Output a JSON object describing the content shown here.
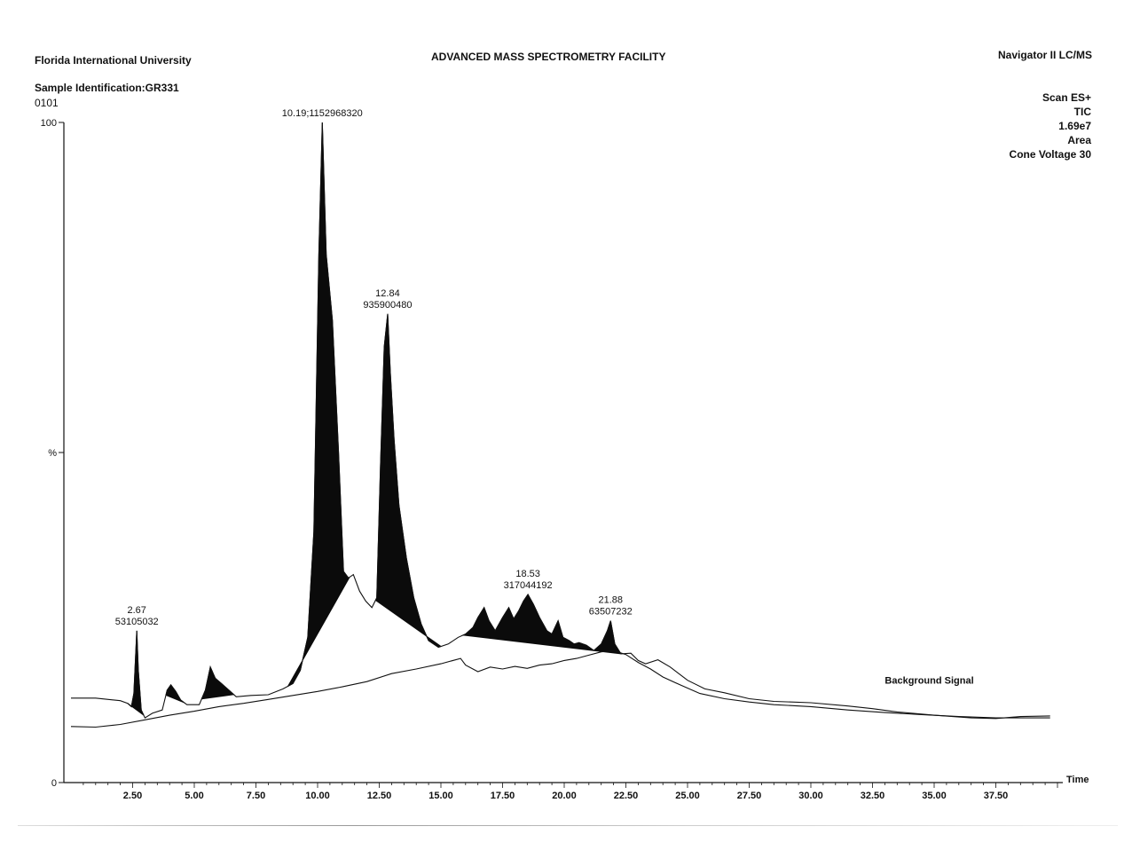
{
  "header": {
    "institution": "Florida International University",
    "facility": "ADVANCED MASS SPECTROMETRY FACILITY",
    "instrument": "Navigator II LC/MS",
    "sample_identification": "Sample Identification:GR331",
    "run_id": "0101"
  },
  "scan_info": [
    "Scan ES+",
    "TIC",
    "1.69e7",
    "Area",
    "Cone Voltage 30"
  ],
  "chart_data": {
    "type": "line",
    "xlabel": "Time",
    "ylabel": "%",
    "xlim": [
      0,
      40
    ],
    "ylim": [
      0,
      100
    ],
    "y_ticks": [
      {
        "value": 0,
        "label": "0"
      },
      {
        "value": 50,
        "label": "%"
      },
      {
        "value": 100,
        "label": "100"
      }
    ],
    "x_ticks": [
      "2.50",
      "5.00",
      "7.50",
      "10.00",
      "12.50",
      "15.00",
      "17.50",
      "20.00",
      "22.50",
      "25.00",
      "27.50",
      "30.00",
      "32.50",
      "35.00",
      "37.50"
    ],
    "series": [
      {
        "name": "",
        "points": [
          [
            0,
            12.8
          ],
          [
            1.0,
            12.8
          ],
          [
            2.0,
            12.4
          ],
          [
            2.3,
            12.0
          ],
          [
            2.45,
            11.5
          ],
          [
            2.55,
            13.5
          ],
          [
            2.62,
            19.0
          ],
          [
            2.67,
            23.0
          ],
          [
            2.73,
            17.0
          ],
          [
            2.85,
            11.0
          ],
          [
            3.0,
            9.8
          ],
          [
            3.3,
            10.5
          ],
          [
            3.7,
            11.0
          ],
          [
            3.9,
            14.0
          ],
          [
            4.05,
            14.8
          ],
          [
            4.25,
            13.8
          ],
          [
            4.45,
            12.5
          ],
          [
            4.7,
            11.8
          ],
          [
            5.2,
            11.8
          ],
          [
            5.45,
            14.0
          ],
          [
            5.65,
            17.5
          ],
          [
            5.85,
            15.8
          ],
          [
            6.1,
            15.0
          ],
          [
            6.4,
            14.0
          ],
          [
            6.7,
            13.0
          ],
          [
            7.3,
            13.2
          ],
          [
            8.0,
            13.3
          ],
          [
            8.6,
            14.2
          ],
          [
            9.0,
            15.0
          ],
          [
            9.3,
            17.0
          ],
          [
            9.6,
            22.0
          ],
          [
            9.85,
            38.0
          ],
          [
            10.05,
            80.0
          ],
          [
            10.19,
            100.0
          ],
          [
            10.35,
            80.0
          ],
          [
            10.6,
            70.0
          ],
          [
            10.85,
            50.0
          ],
          [
            11.05,
            32.0
          ],
          [
            11.25,
            31.0
          ],
          [
            11.45,
            31.5
          ],
          [
            11.7,
            29.0
          ],
          [
            11.95,
            27.5
          ],
          [
            12.2,
            26.5
          ],
          [
            12.4,
            28.0
          ],
          [
            12.55,
            48.0
          ],
          [
            12.7,
            66.0
          ],
          [
            12.84,
            71.0
          ],
          [
            12.95,
            62.0
          ],
          [
            13.1,
            52.0
          ],
          [
            13.3,
            42.0
          ],
          [
            13.6,
            34.0
          ],
          [
            13.9,
            28.0
          ],
          [
            14.2,
            24.0
          ],
          [
            14.5,
            21.5
          ],
          [
            14.9,
            20.5
          ],
          [
            15.3,
            21.0
          ],
          [
            15.7,
            22.0
          ],
          [
            16.0,
            22.5
          ],
          [
            16.3,
            23.5
          ],
          [
            16.5,
            25.0
          ],
          [
            16.75,
            26.5
          ],
          [
            16.95,
            24.5
          ],
          [
            17.2,
            23.0
          ],
          [
            17.5,
            25.0
          ],
          [
            17.75,
            26.5
          ],
          [
            17.95,
            24.8
          ],
          [
            18.15,
            26.0
          ],
          [
            18.35,
            27.5
          ],
          [
            18.53,
            28.5
          ],
          [
            18.75,
            27.0
          ],
          [
            19.0,
            25.0
          ],
          [
            19.3,
            23.0
          ],
          [
            19.5,
            22.5
          ],
          [
            19.75,
            24.5
          ],
          [
            19.95,
            22.0
          ],
          [
            20.2,
            21.5
          ],
          [
            20.4,
            21.0
          ],
          [
            20.6,
            21.2
          ],
          [
            20.9,
            20.8
          ],
          [
            21.2,
            20.0
          ],
          [
            21.5,
            21.0
          ],
          [
            21.75,
            23.0
          ],
          [
            21.88,
            24.5
          ],
          [
            22.05,
            21.0
          ],
          [
            22.3,
            19.5
          ],
          [
            22.7,
            19.6
          ],
          [
            23.0,
            18.5
          ],
          [
            23.3,
            18.0
          ],
          [
            23.8,
            18.6
          ],
          [
            24.3,
            17.5
          ],
          [
            25.0,
            15.5
          ],
          [
            25.7,
            14.2
          ],
          [
            26.5,
            13.6
          ],
          [
            27.5,
            12.7
          ],
          [
            28.5,
            12.3
          ],
          [
            30.0,
            12.1
          ],
          [
            31.5,
            11.6
          ],
          [
            32.5,
            11.2
          ],
          [
            33.5,
            10.7
          ],
          [
            35.0,
            10.2
          ],
          [
            36.5,
            9.8
          ],
          [
            37.5,
            9.7
          ],
          [
            38.5,
            10.0
          ],
          [
            39.7,
            10.1
          ]
        ],
        "labeled_peaks": [
          {
            "rt": "2.67",
            "area": "53105032",
            "x": 2.67,
            "y": 23.0
          },
          {
            "rt": "10.19;1152968320",
            "area": "",
            "x": 10.19,
            "y": 100.0
          },
          {
            "rt": "12.84",
            "area": "935900480",
            "x": 12.84,
            "y": 71.0
          },
          {
            "rt": "18.53",
            "area": "317044192",
            "x": 18.53,
            "y": 28.5
          },
          {
            "rt": "21.88",
            "area": "63507232",
            "x": 21.88,
            "y": 24.5
          }
        ],
        "integrated_regions": [
          {
            "start": 2.3,
            "end": 2.95
          },
          {
            "start": 3.85,
            "end": 4.6
          },
          {
            "start": 5.3,
            "end": 6.6
          },
          {
            "start": 8.8,
            "end": 11.3
          },
          {
            "start": 12.35,
            "end": 15.0
          },
          {
            "start": 15.9,
            "end": 22.3
          }
        ]
      },
      {
        "name": "Background Signal",
        "points": [
          [
            0,
            8.5
          ],
          [
            1.0,
            8.4
          ],
          [
            2.0,
            8.8
          ],
          [
            3.0,
            9.5
          ],
          [
            4.0,
            10.2
          ],
          [
            5.0,
            10.8
          ],
          [
            6.0,
            11.5
          ],
          [
            7.0,
            12.0
          ],
          [
            8.0,
            12.6
          ],
          [
            9.0,
            13.2
          ],
          [
            10.0,
            13.8
          ],
          [
            11.0,
            14.5
          ],
          [
            12.0,
            15.3
          ],
          [
            13.0,
            16.5
          ],
          [
            14.0,
            17.2
          ],
          [
            15.0,
            18.0
          ],
          [
            15.8,
            18.8
          ],
          [
            16.0,
            17.8
          ],
          [
            16.5,
            16.8
          ],
          [
            17.0,
            17.5
          ],
          [
            17.5,
            17.2
          ],
          [
            18.0,
            17.6
          ],
          [
            18.5,
            17.3
          ],
          [
            19.0,
            17.8
          ],
          [
            19.5,
            18.0
          ],
          [
            20.0,
            18.5
          ],
          [
            20.5,
            18.8
          ],
          [
            21.0,
            19.3
          ],
          [
            21.5,
            19.8
          ],
          [
            22.0,
            20.0
          ],
          [
            22.5,
            19.4
          ],
          [
            23.0,
            18.2
          ],
          [
            23.5,
            17.2
          ],
          [
            24.0,
            16.0
          ],
          [
            24.7,
            14.8
          ],
          [
            25.5,
            13.5
          ],
          [
            26.5,
            12.7
          ],
          [
            27.5,
            12.2
          ],
          [
            28.5,
            11.8
          ],
          [
            30.0,
            11.5
          ],
          [
            31.5,
            11.0
          ],
          [
            33.0,
            10.6
          ],
          [
            34.5,
            10.3
          ],
          [
            36.0,
            10.0
          ],
          [
            37.5,
            9.8
          ],
          [
            39.7,
            9.8
          ]
        ],
        "label": "Background Signal"
      }
    ]
  }
}
